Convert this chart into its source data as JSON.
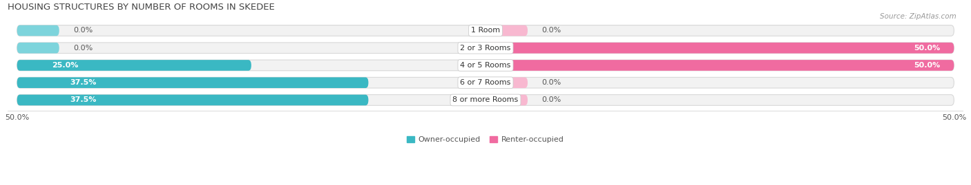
{
  "title": "HOUSING STRUCTURES BY NUMBER OF ROOMS IN SKEDEE",
  "source": "Source: ZipAtlas.com",
  "categories": [
    "1 Room",
    "2 or 3 Rooms",
    "4 or 5 Rooms",
    "6 or 7 Rooms",
    "8 or more Rooms"
  ],
  "owner_values": [
    0.0,
    0.0,
    25.0,
    37.5,
    37.5
  ],
  "renter_values": [
    0.0,
    50.0,
    50.0,
    0.0,
    0.0
  ],
  "owner_color": "#3ab8c3",
  "renter_color": "#f06ba0",
  "renter_stub_color": "#f8b8d0",
  "owner_stub_color": "#7dd4dc",
  "bar_bg_color": "#f2f2f2",
  "bar_shadow_color": "#d8d8d8",
  "max_value": 50.0,
  "figsize": [
    14.06,
    2.69
  ],
  "dpi": 100,
  "title_fontsize": 9.5,
  "label_fontsize": 8,
  "tick_fontsize": 8,
  "legend_fontsize": 8,
  "category_fontsize": 8,
  "bar_height": 0.62,
  "title_color": "#444444",
  "text_color": "#555555",
  "source_color": "#999999",
  "stub_size": 4.5,
  "label_inside_color": "white",
  "label_outside_color": "#555555"
}
